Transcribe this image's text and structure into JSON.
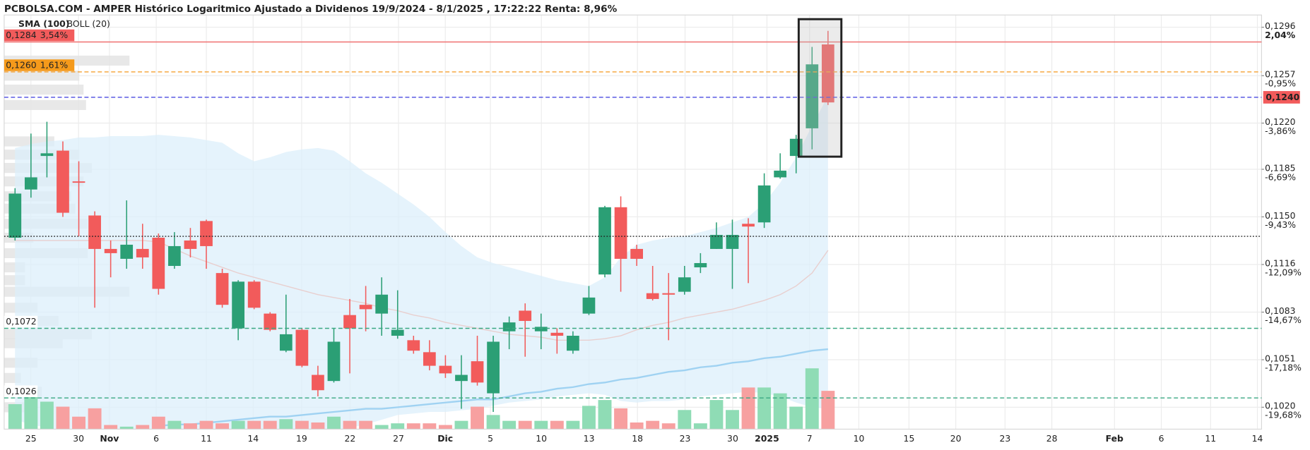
{
  "chart_data": {
    "type": "candlestick",
    "title": "PCBOLSA.COM - AMPER Histórico Logaritmico Ajustado a Dividenos 19/9/2024 - 8/1/2025 , 17:22:22 Renta: 8,96%",
    "log_scale": true,
    "grid": true,
    "ylim": [
      0.1006,
      0.1306
    ],
    "yticks": [
      {
        "value": 0.1296,
        "label": "0,1296",
        "change": "2,04%"
      },
      {
        "value": 0.1257,
        "label": "0,1257",
        "change": "-0,95%"
      },
      {
        "value": 0.122,
        "label": "0,1220",
        "change": "-3,86%"
      },
      {
        "value": 0.1185,
        "label": "0,1185",
        "change": "-6,69%"
      },
      {
        "value": 0.115,
        "label": "0,1150",
        "change": "-9,43%"
      },
      {
        "value": 0.1116,
        "label": "0,1116",
        "change": "-12,09%"
      },
      {
        "value": 0.1083,
        "label": "0,1083",
        "change": "-14,67%"
      },
      {
        "value": 0.1051,
        "label": "0,1051",
        "change": "-17,18%"
      },
      {
        "value": 0.102,
        "label": "0,1020",
        "change": "-19,68%"
      }
    ],
    "x_labels": [
      "25",
      "30",
      "Nov",
      "6",
      "11",
      "14",
      "19",
      "22",
      "27",
      "Dic",
      "5",
      "10",
      "13",
      "18",
      "23",
      "30",
      "2025",
      "7",
      "10",
      "15",
      "20",
      "23",
      "28",
      "Feb",
      "6",
      "11",
      "14"
    ],
    "up_color": "#2b9f75",
    "down_color": "#f25b5b",
    "open": [
      0.1135,
      0.117,
      0.1195,
      0.1199,
      0.1176,
      0.1151,
      0.1127,
      0.112,
      0.1127,
      0.1135,
      0.1115,
      0.1133,
      0.1147,
      0.111,
      0.1072,
      0.1104,
      0.1082,
      0.1057,
      0.1071,
      0.1041,
      0.1037,
      0.1081,
      0.1088,
      0.1082,
      0.1067,
      0.1064,
      0.1056,
      0.1047,
      0.1037,
      0.105,
      0.1029,
      0.107,
      0.1084,
      0.107,
      0.1069,
      0.1057,
      0.1082,
      0.1109,
      0.1157,
      0.1127,
      0.1096,
      0.1096,
      0.1097,
      0.1114,
      0.1127,
      0.1127,
      0.1145,
      0.1146,
      0.1179,
      0.1195,
      0.1216,
      0.1282
    ],
    "high": [
      0.1171,
      0.1212,
      0.1221,
      0.1206,
      0.1191,
      0.1154,
      0.1133,
      0.1162,
      0.1145,
      0.1138,
      0.1139,
      0.1142,
      0.1148,
      0.1113,
      0.1105,
      0.1105,
      0.1083,
      0.1095,
      0.1072,
      0.1047,
      0.1072,
      0.1092,
      0.1101,
      0.1107,
      0.1098,
      0.1067,
      0.1064,
      0.1054,
      0.1054,
      0.1067,
      0.1067,
      0.108,
      0.1089,
      0.1082,
      0.1072,
      0.107,
      0.1101,
      0.1158,
      0.1165,
      0.113,
      0.1115,
      0.111,
      0.1115,
      0.1124,
      0.1146,
      0.1148,
      0.1149,
      0.1182,
      0.1197,
      0.1211,
      0.128,
      0.1293
    ],
    "low": [
      0.1133,
      0.1164,
      0.1179,
      0.115,
      0.1136,
      0.1086,
      0.1107,
      0.1113,
      0.1113,
      0.1095,
      0.1113,
      0.1121,
      0.1113,
      0.1086,
      0.1064,
      0.1085,
      0.107,
      0.1056,
      0.1046,
      0.1027,
      0.1036,
      0.1042,
      0.107,
      0.1067,
      0.1065,
      0.1055,
      0.1044,
      0.1039,
      0.1019,
      0.1034,
      0.1017,
      0.1058,
      0.1053,
      0.1058,
      0.1055,
      0.1055,
      0.1081,
      0.1107,
      0.1097,
      0.1115,
      0.1091,
      0.1064,
      0.1095,
      0.111,
      0.1127,
      0.1099,
      0.1103,
      0.1142,
      0.1178,
      0.1182,
      0.12,
      0.1234
    ],
    "close": [
      0.1167,
      0.1179,
      0.1197,
      0.1153,
      0.1175,
      0.1127,
      0.1124,
      0.113,
      0.1121,
      0.1099,
      0.1129,
      0.1127,
      0.1129,
      0.1088,
      0.1104,
      0.1086,
      0.1071,
      0.1068,
      0.1047,
      0.1031,
      0.1063,
      0.1072,
      0.1085,
      0.1095,
      0.1071,
      0.1057,
      0.1047,
      0.1042,
      0.1041,
      0.1036,
      0.1063,
      0.1076,
      0.1077,
      0.1073,
      0.1067,
      0.1067,
      0.1093,
      0.1157,
      0.112,
      0.112,
      0.1092,
      0.1095,
      0.1107,
      0.1117,
      0.1137,
      0.1137,
      0.1143,
      0.1173,
      0.1184,
      0.1208,
      0.1266,
      0.1236
    ],
    "volume": {
      "vlim": [
        0,
        100
      ],
      "up_color": "#8fdcb5",
      "down_color": "#f7a0a0",
      "values": [
        30,
        48,
        33,
        27,
        15,
        25,
        5,
        3,
        5,
        15,
        10,
        7,
        10,
        7,
        10,
        10,
        10,
        12,
        10,
        8,
        15,
        10,
        10,
        5,
        7,
        7,
        7,
        5,
        10,
        27,
        17,
        10,
        10,
        10,
        10,
        10,
        28,
        35,
        25,
        8,
        10,
        7,
        23,
        7,
        35,
        23,
        50,
        50,
        43,
        27,
        73,
        46
      ]
    },
    "sma": {
      "name": "SMA (100)",
      "color": "#9fd2f2",
      "values": [
        null,
        null,
        null,
        null,
        null,
        null,
        null,
        null,
        null,
        0.1008,
        0.1009,
        0.1009,
        0.101,
        0.1011,
        0.1012,
        0.1013,
        0.1014,
        0.1014,
        0.1015,
        0.1016,
        0.1017,
        0.1018,
        0.1019,
        0.1019,
        0.102,
        0.1021,
        0.1022,
        0.1023,
        0.1024,
        0.1025,
        0.1025,
        0.1027,
        0.1029,
        0.103,
        0.1032,
        0.1033,
        0.1035,
        0.1036,
        0.1038,
        0.1039,
        0.1041,
        0.1043,
        0.1044,
        0.1046,
        0.1047,
        0.1049,
        0.105,
        0.1052,
        0.1053,
        0.1055,
        0.1057,
        0.1058
      ]
    },
    "boll": {
      "name": "BOLL (20)",
      "color": "#d0d0d0",
      "fill": "#dcefFB",
      "middle_color": "#e8cfcf",
      "upper": [
        0.1201,
        0.1204,
        0.1206,
        0.1207,
        0.1209,
        0.1209,
        0.121,
        0.121,
        0.121,
        0.1211,
        0.121,
        0.1209,
        0.1207,
        0.1205,
        0.1197,
        0.1191,
        0.1194,
        0.1198,
        0.12,
        0.1201,
        0.1199,
        0.1191,
        0.1182,
        0.1175,
        0.1167,
        0.1159,
        0.115,
        0.1139,
        0.1129,
        0.1121,
        0.1117,
        0.1114,
        0.1111,
        0.1108,
        0.1105,
        0.1103,
        0.1101,
        0.1107,
        0.1121,
        0.113,
        0.1133,
        0.1135,
        0.1136,
        0.1139,
        0.1142,
        0.1146,
        0.115,
        0.116,
        0.1175,
        0.1194,
        0.1218,
        0.1241
      ],
      "middle": [
        0.1133,
        0.1133,
        0.1133,
        0.1133,
        0.1133,
        0.1133,
        0.1133,
        0.1133,
        0.1133,
        0.1132,
        0.1127,
        0.1122,
        0.1118,
        0.1114,
        0.111,
        0.1107,
        0.1104,
        0.1101,
        0.1098,
        0.1095,
        0.1093,
        0.1091,
        0.1089,
        0.1086,
        0.1084,
        0.1081,
        0.1079,
        0.1076,
        0.1074,
        0.1072,
        0.107,
        0.1068,
        0.1067,
        0.1066,
        0.1064,
        0.1064,
        0.1064,
        0.1065,
        0.1067,
        0.1071,
        0.1074,
        0.1076,
        0.1079,
        0.1081,
        0.1083,
        0.1085,
        0.1088,
        0.1091,
        0.1095,
        0.1101,
        0.111,
        0.1126
      ],
      "lower": [
        0.1012,
        0.1009,
        0.1007,
        0.1005,
        0.1004,
        0.1004,
        0.1004,
        0.1004,
        0.1004,
        0.1004,
        0.1004,
        0.1004,
        0.1004,
        0.1004,
        0.1004,
        0.1004,
        0.1004,
        0.1004,
        0.1004,
        0.1004,
        0.1004,
        0.1007,
        0.1009,
        0.1012,
        0.1015,
        0.1016,
        0.1017,
        0.1017,
        0.1018,
        0.1019,
        0.1021,
        0.1023,
        0.1024,
        0.1025,
        0.1027,
        0.1028,
        0.1029,
        0.1028,
        0.1024,
        0.1023,
        0.1024,
        0.1024,
        0.1025,
        0.1027,
        0.1028,
        0.1029,
        0.103,
        0.1029,
        0.1027,
        0.1023,
        0.102,
        0.1019
      ]
    },
    "levels": [
      {
        "value": 0.1284,
        "label": "0,1284",
        "change": "3,54%",
        "color": "#f07070",
        "style": "solid",
        "side": "left",
        "label_bg": "#f25b5b",
        "label_color": "#ffffff"
      },
      {
        "value": 0.126,
        "label": "0,1260",
        "change": "1,61%",
        "color": "#f5a030",
        "style": "dashed",
        "side": "left",
        "label_bg": "#f59a1b",
        "label_color": "#ffffff"
      },
      {
        "value": 0.124,
        "label": "0,1240",
        "color": "#4a4ae0",
        "style": "dashed",
        "side": "right",
        "label_bg": "#f25b5b",
        "label_color": "#ffffff"
      },
      {
        "value": 0.1136,
        "color": "#222222",
        "style": "dotted"
      },
      {
        "value": 0.1072,
        "label": "0,1072",
        "color": "#3aa882",
        "style": "dashed",
        "side": "left",
        "label_bg": "#ffffff",
        "label_color": "#222222"
      },
      {
        "value": 0.1026,
        "label": "0,1026",
        "color": "#3aa882",
        "style": "dashed",
        "side": "left",
        "label_bg": "#ffffff",
        "label_color": "#222222"
      }
    ],
    "volume_profile": {
      "color": "#e4e4e4",
      "prices": [
        0.1269,
        0.1257,
        0.1246,
        0.1234,
        0.1206,
        0.1196,
        0.1186,
        0.1176,
        0.1165,
        0.1156,
        0.1145,
        0.1135,
        0.1124,
        0.1114,
        0.1105,
        0.1097,
        0.1086,
        0.1077,
        0.1068,
        0.1062,
        0.1049,
        0.1039,
        0.103,
        0.102
      ],
      "values": [
        150,
        90,
        95,
        98,
        60,
        90,
        105,
        95,
        80,
        85,
        100,
        35,
        100,
        25,
        25,
        150,
        40,
        65,
        105,
        70,
        40,
        20,
        45,
        30
      ]
    }
  }
}
